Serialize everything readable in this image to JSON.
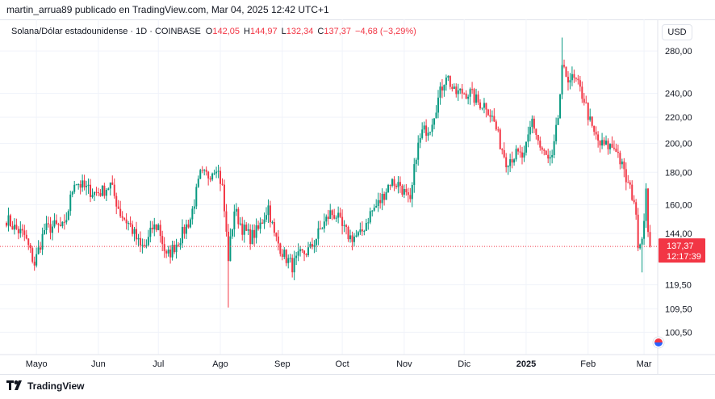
{
  "header": {
    "publisher": "martin_arrua89 publicado en TradingView.com, Mar 04, 2025 12:42 UTC+1"
  },
  "legend": {
    "symbol": "Solana/Dólar estadounidense · 1D · COINBASE",
    "o_label": "O",
    "o_value": "142,05",
    "h_label": "H",
    "h_value": "144,97",
    "l_label": "L",
    "l_value": "132,34",
    "c_label": "C",
    "c_value": "137,37",
    "change": "−4,68 (−3,29%)"
  },
  "currency_button": "USD",
  "price_label": {
    "value": "137,37",
    "countdown": "12:17:39"
  },
  "footer": {
    "logo_icon": "tradingview-logo-icon",
    "brand": "TradingView"
  },
  "colors": {
    "up": "#089981",
    "down": "#f23645",
    "grid": "#f0f3fa",
    "axis_text": "#131722"
  },
  "chart_data": {
    "type": "candlestick",
    "title": "Solana/Dólar estadounidense · 1D · COINBASE",
    "y_scale": "log",
    "ylim": [
      98,
      305
    ],
    "y_ticks": [
      {
        "value": 280,
        "label": "280,00"
      },
      {
        "value": 240,
        "label": "240,00"
      },
      {
        "value": 220,
        "label": "220,00"
      },
      {
        "value": 200,
        "label": "200,00"
      },
      {
        "value": 180,
        "label": "180,00"
      },
      {
        "value": 160,
        "label": "160,00"
      },
      {
        "value": 144,
        "label": "144,00"
      },
      {
        "value": 119.5,
        "label": "119,50"
      },
      {
        "value": 109.5,
        "label": "109,50"
      },
      {
        "value": 100.5,
        "label": "100,50"
      }
    ],
    "x_range": [
      "2024-04-16",
      "2025-03-05"
    ],
    "x_ticks": [
      {
        "date": "2024-05-01",
        "label": "Mayo"
      },
      {
        "date": "2024-06-01",
        "label": "Jun"
      },
      {
        "date": "2024-07-01",
        "label": "Jul"
      },
      {
        "date": "2024-08-01",
        "label": "Ago"
      },
      {
        "date": "2024-09-01",
        "label": "Sep"
      },
      {
        "date": "2024-10-01",
        "label": "Oct"
      },
      {
        "date": "2024-11-01",
        "label": "Nov"
      },
      {
        "date": "2024-12-01",
        "label": "Dic"
      },
      {
        "date": "2025-01-01",
        "label": "2025",
        "bold": true
      },
      {
        "date": "2025-02-01",
        "label": "Feb"
      },
      {
        "date": "2025-03-01",
        "label": "Mar"
      }
    ],
    "last_price": 137.37,
    "close_anchors": [
      [
        "2024-04-16",
        152
      ],
      [
        "2024-04-20",
        147
      ],
      [
        "2024-04-25",
        143
      ],
      [
        "2024-04-30",
        129
      ],
      [
        "2024-05-05",
        146
      ],
      [
        "2024-05-10",
        148
      ],
      [
        "2024-05-15",
        147
      ],
      [
        "2024-05-20",
        175
      ],
      [
        "2024-05-25",
        170
      ],
      [
        "2024-05-30",
        167
      ],
      [
        "2024-06-03",
        168
      ],
      [
        "2024-06-07",
        172
      ],
      [
        "2024-06-12",
        155
      ],
      [
        "2024-06-17",
        148
      ],
      [
        "2024-06-22",
        137
      ],
      [
        "2024-06-25",
        138
      ],
      [
        "2024-06-28",
        147
      ],
      [
        "2024-07-01",
        148
      ],
      [
        "2024-07-05",
        132
      ],
      [
        "2024-07-08",
        136
      ],
      [
        "2024-07-12",
        142
      ],
      [
        "2024-07-17",
        152
      ],
      [
        "2024-07-22",
        178
      ],
      [
        "2024-07-26",
        178
      ],
      [
        "2024-07-30",
        185
      ],
      [
        "2024-08-02",
        170
      ],
      [
        "2024-08-05",
        132
      ],
      [
        "2024-08-08",
        157
      ],
      [
        "2024-08-12",
        147
      ],
      [
        "2024-08-16",
        142
      ],
      [
        "2024-08-20",
        146
      ],
      [
        "2024-08-25",
        159
      ],
      [
        "2024-08-28",
        143
      ],
      [
        "2024-09-02",
        133
      ],
      [
        "2024-09-06",
        128
      ],
      [
        "2024-09-10",
        133
      ],
      [
        "2024-09-15",
        136
      ],
      [
        "2024-09-20",
        146
      ],
      [
        "2024-09-25",
        155
      ],
      [
        "2024-09-28",
        154
      ],
      [
        "2024-10-01",
        147
      ],
      [
        "2024-10-05",
        142
      ],
      [
        "2024-10-10",
        143
      ],
      [
        "2024-10-15",
        155
      ],
      [
        "2024-10-20",
        162
      ],
      [
        "2024-10-25",
        174
      ],
      [
        "2024-10-30",
        172
      ],
      [
        "2024-11-04",
        160
      ],
      [
        "2024-11-07",
        193
      ],
      [
        "2024-11-10",
        208
      ],
      [
        "2024-11-14",
        213
      ],
      [
        "2024-11-18",
        235
      ],
      [
        "2024-11-22",
        258
      ],
      [
        "2024-11-26",
        240
      ],
      [
        "2024-11-30",
        241
      ],
      [
        "2024-12-04",
        240
      ],
      [
        "2024-12-08",
        232
      ],
      [
        "2024-12-12",
        230
      ],
      [
        "2024-12-16",
        216
      ],
      [
        "2024-12-19",
        200
      ],
      [
        "2024-12-22",
        188
      ],
      [
        "2024-12-27",
        192
      ],
      [
        "2024-12-31",
        190
      ],
      [
        "2025-01-04",
        218
      ],
      [
        "2025-01-08",
        197
      ],
      [
        "2025-01-12",
        188
      ],
      [
        "2025-01-14",
        188
      ],
      [
        "2025-01-17",
        220
      ],
      [
        "2025-01-19",
        260
      ],
      [
        "2025-01-22",
        255
      ],
      [
        "2025-01-26",
        250
      ],
      [
        "2025-01-30",
        235
      ],
      [
        "2025-02-03",
        210
      ],
      [
        "2025-02-07",
        199
      ],
      [
        "2025-02-11",
        198
      ],
      [
        "2025-02-15",
        197
      ],
      [
        "2025-02-20",
        175
      ],
      [
        "2025-02-24",
        163
      ],
      [
        "2025-02-26",
        140
      ],
      [
        "2025-02-28",
        142
      ],
      [
        "2025-03-02",
        168
      ],
      [
        "2025-03-03",
        142
      ],
      [
        "2025-03-04",
        137.37
      ]
    ]
  }
}
